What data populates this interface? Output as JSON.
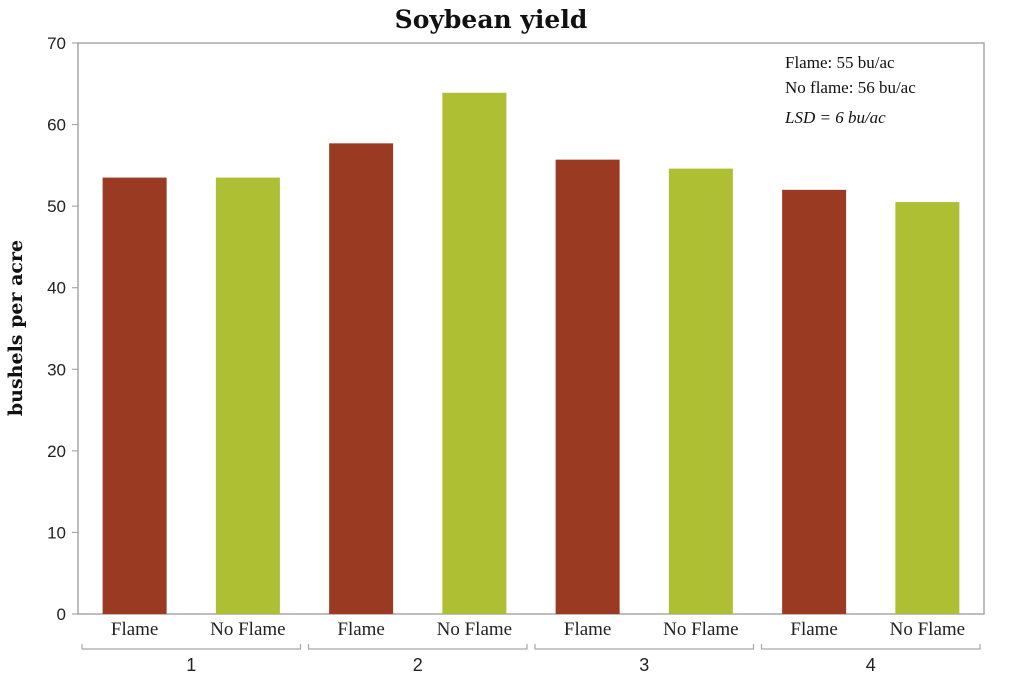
{
  "chart_data": {
    "type": "bar",
    "title": "Soybean yield",
    "ylabel": "bushels per acre",
    "xlabel": "",
    "ylim": [
      0,
      70
    ],
    "yticks": [
      0,
      10,
      20,
      30,
      40,
      50,
      60,
      70
    ],
    "groups": [
      "1",
      "2",
      "3",
      "4"
    ],
    "categories": [
      "Flame",
      "No Flame",
      "Flame",
      "No Flame",
      "Flame",
      "No Flame",
      "Flame",
      "No Flame"
    ],
    "values": [
      53.5,
      53.5,
      57.7,
      63.9,
      55.7,
      54.6,
      52.0,
      50.5
    ],
    "colors": {
      "Flame": "#9b3a22",
      "No Flame": "#afbf34"
    },
    "annotations": [
      "Flame: 55 bu/ac",
      "No flame: 56 bu/ac",
      "LSD = 6 bu/ac"
    ],
    "grid": false
  }
}
